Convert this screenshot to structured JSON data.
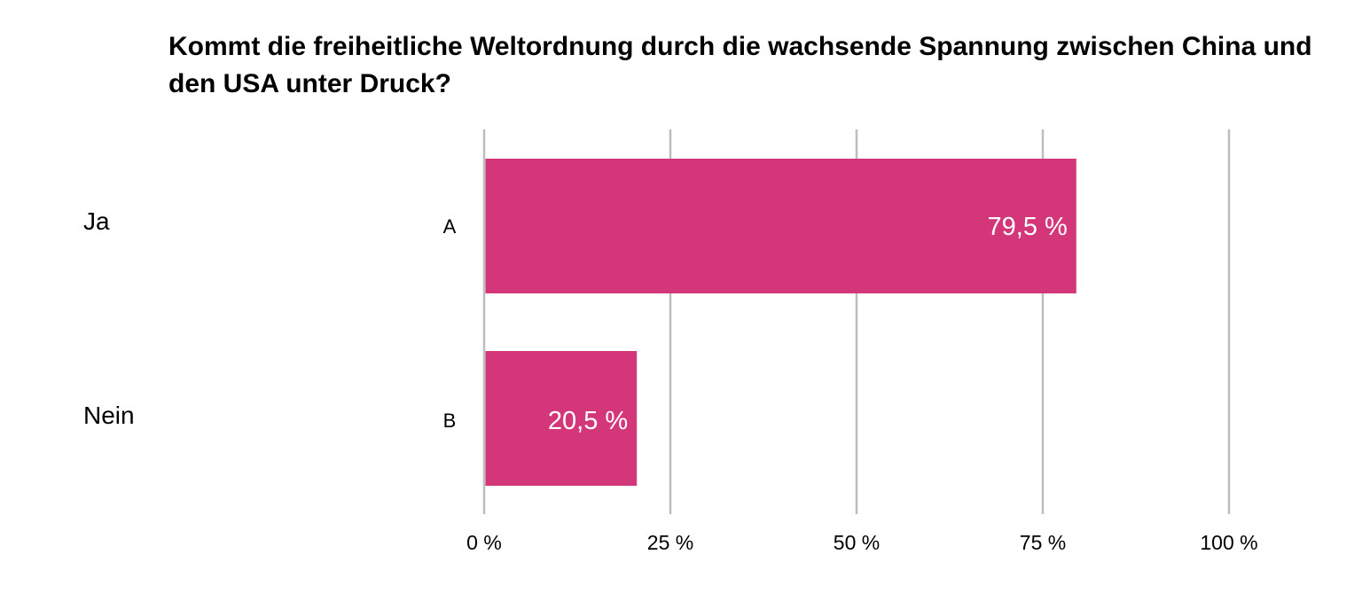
{
  "chart_data": {
    "type": "bar",
    "orientation": "horizontal",
    "title": "Kommt die freiheitliche Weltordnung durch die wachsende Spannung zwischen China und den USA unter Druck?",
    "answers": [
      "Ja",
      "Nein"
    ],
    "categories": [
      "A",
      "B"
    ],
    "values": [
      79.5,
      20.5
    ],
    "data_labels": [
      "79,5 %",
      "20,5 %"
    ],
    "xlim": [
      0,
      100
    ],
    "x_ticks": [
      0,
      25,
      50,
      75,
      100
    ],
    "x_tick_labels": [
      "0 %",
      "25 %",
      "50 %",
      "75 %",
      "100 %"
    ],
    "grid": true,
    "legend": "none",
    "bar_color": "#d3377a",
    "grid_color": "#bdbdbd"
  }
}
